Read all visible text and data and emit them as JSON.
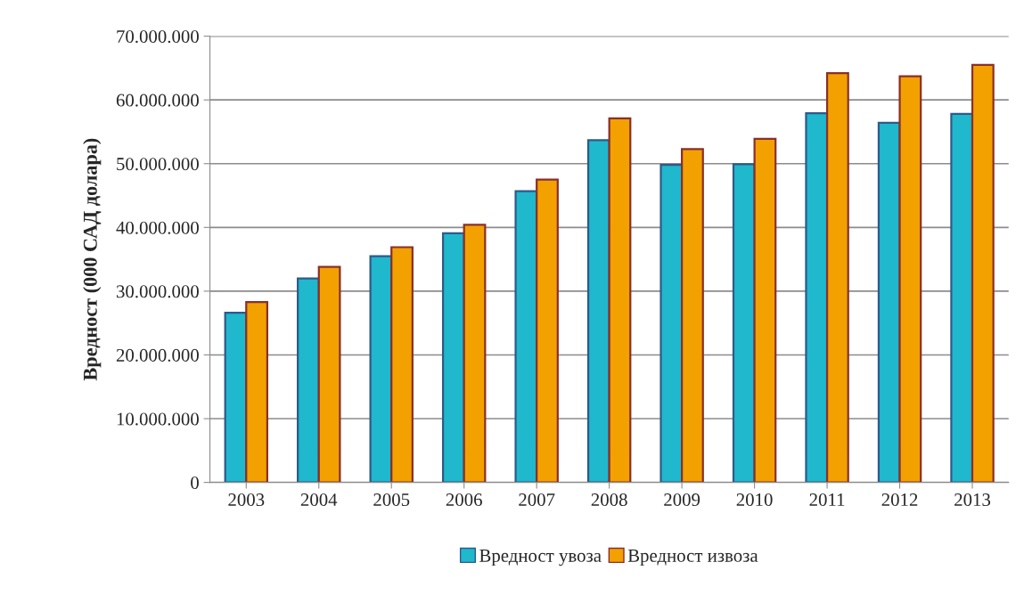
{
  "chart_data": {
    "type": "bar",
    "ylabel": "Вредност (000 САД долара)",
    "categories": [
      "2003",
      "2004",
      "2005",
      "2006",
      "2007",
      "2008",
      "2009",
      "2010",
      "2011",
      "2012",
      "2013"
    ],
    "series": [
      {
        "name": "Вредност увоза",
        "color": "#1fb8cc",
        "values": [
          26600000,
          32000000,
          35500000,
          39100000,
          45700000,
          53700000,
          49800000,
          49900000,
          57900000,
          56400000,
          57800000
        ]
      },
      {
        "name": "Вредност извоза",
        "color": "#f2a100",
        "values": [
          28300000,
          33800000,
          36900000,
          40400000,
          47500000,
          57100000,
          52300000,
          53900000,
          64200000,
          63700000,
          65500000
        ]
      }
    ],
    "ylim": [
      0,
      70000000
    ],
    "yticks": [
      0,
      {
        "value": 10000000,
        "label": "10.000.000"
      },
      {
        "value": 20000000,
        "label": "20.000.000"
      },
      {
        "value": 30000000,
        "label": "30.000.000"
      },
      {
        "value": 40000000,
        "label": "40.000.000"
      },
      {
        "value": 50000000,
        "label": "50.000.000"
      },
      {
        "value": 60000000,
        "label": "60.000.000"
      },
      {
        "value": 70000000,
        "label": "70.000.000"
      }
    ],
    "grid": "y",
    "legend": "bottom"
  }
}
